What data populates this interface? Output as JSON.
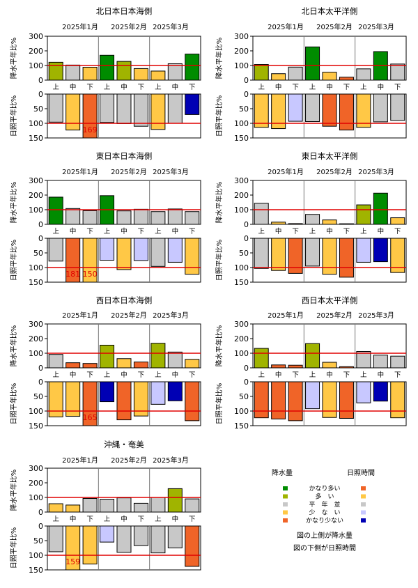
{
  "months": [
    "2025年1月",
    "2025年2月",
    "2025年3月"
  ],
  "dekads": [
    "上",
    "中",
    "下"
  ],
  "precip_axis_label": "降水平年比%",
  "sun_axis_label": "日照平年比%",
  "precip_ticks": [
    "0",
    "100",
    "200",
    "300"
  ],
  "sun_ticks": [
    "0",
    "50",
    "100",
    "150"
  ],
  "legend": {
    "precip_title": "降水量",
    "sun_title": "日照時間",
    "classes": [
      "かなり多い",
      "多　い",
      "平　年　並",
      "少　な　い",
      "かなり少ない"
    ],
    "precip_colors": [
      "#008c00",
      "#a0b400",
      "#c8c8c8",
      "#ffc846",
      "#f06428"
    ],
    "sun_colors": [
      "#f06428",
      "#ffc846",
      "#c8c8c8",
      "#c8c8ff",
      "#0000b4"
    ],
    "note_line1": "図の上側が降水量",
    "note_line2": "図の下側が日照時間"
  },
  "chart_data": [
    {
      "type": "bar",
      "title": "北日本日本海側",
      "categories": [
        "1月上",
        "1月中",
        "1月下",
        "2月上",
        "2月中",
        "2月下",
        "3月上",
        "3月中",
        "3月下"
      ],
      "precip": [
        122,
        103,
        88,
        170,
        128,
        79,
        62,
        112,
        178
      ],
      "precip_class": [
        1,
        2,
        3,
        0,
        1,
        3,
        3,
        2,
        0
      ],
      "sun": [
        96,
        123,
        169,
        97,
        101,
        110,
        121,
        100,
        70
      ],
      "sun_class": [
        2,
        1,
        0,
        2,
        2,
        2,
        1,
        2,
        4
      ],
      "sun_labels": [
        "",
        "",
        "169",
        "",
        "",
        "",
        "",
        "",
        ""
      ],
      "precip_ylim": [
        0,
        300
      ],
      "sun_ylim": [
        0,
        150
      ]
    },
    {
      "type": "bar",
      "title": "北日本太平洋側",
      "categories": [
        "1月上",
        "1月中",
        "1月下",
        "2月上",
        "2月中",
        "2月下",
        "3月上",
        "3月中",
        "3月下"
      ],
      "precip": [
        107,
        44,
        89,
        227,
        54,
        20,
        77,
        195,
        110
      ],
      "precip_class": [
        1,
        3,
        2,
        0,
        3,
        4,
        2,
        0,
        2
      ],
      "sun": [
        114,
        118,
        93,
        94,
        110,
        123,
        114,
        95,
        90
      ],
      "sun_class": [
        1,
        1,
        3,
        2,
        0,
        0,
        1,
        2,
        2
      ],
      "sun_labels": [
        "",
        "",
        "",
        "",
        "",
        "",
        "",
        "",
        ""
      ],
      "precip_ylim": [
        0,
        300
      ],
      "sun_ylim": [
        0,
        150
      ]
    },
    {
      "type": "bar",
      "title": "東日本日本海側",
      "categories": [
        "1月上",
        "1月中",
        "1月下",
        "2月上",
        "2月中",
        "2月下",
        "3月上",
        "3月中",
        "3月下"
      ],
      "precip": [
        186,
        108,
        93,
        196,
        92,
        103,
        87,
        105,
        87
      ],
      "precip_class": [
        0,
        2,
        2,
        0,
        2,
        2,
        2,
        2,
        2
      ],
      "sun": [
        78,
        181,
        150,
        75,
        107,
        76,
        96,
        82,
        123
      ],
      "sun_class": [
        2,
        0,
        1,
        3,
        1,
        3,
        2,
        3,
        1
      ],
      "sun_labels": [
        "",
        "181",
        "150",
        "",
        "",
        "",
        "",
        "",
        ""
      ],
      "precip_ylim": [
        0,
        300
      ],
      "sun_ylim": [
        0,
        150
      ]
    },
    {
      "type": "bar",
      "title": "東日本太平洋側",
      "categories": [
        "1月上",
        "1月中",
        "1月下",
        "2月上",
        "2月中",
        "2月下",
        "3月上",
        "3月中",
        "3月下"
      ],
      "precip": [
        144,
        15,
        5,
        68,
        30,
        4,
        133,
        213,
        45
      ],
      "precip_class": [
        2,
        3,
        4,
        2,
        3,
        4,
        1,
        0,
        3
      ],
      "sun": [
        103,
        110,
        120,
        95,
        123,
        133,
        82,
        80,
        117
      ],
      "sun_class": [
        2,
        1,
        0,
        2,
        1,
        0,
        3,
        4,
        1
      ],
      "sun_labels": [
        "",
        "",
        "",
        "",
        "",
        "",
        "",
        "",
        ""
      ],
      "precip_ylim": [
        0,
        300
      ],
      "sun_ylim": [
        0,
        150
      ]
    },
    {
      "type": "bar",
      "title": "西日本日本海側",
      "categories": [
        "1月上",
        "1月中",
        "1月下",
        "2月上",
        "2月中",
        "2月下",
        "3月上",
        "3月中",
        "3月下"
      ],
      "precip": [
        92,
        35,
        30,
        155,
        63,
        40,
        168,
        108,
        58
      ],
      "precip_class": [
        2,
        4,
        4,
        1,
        3,
        4,
        1,
        2,
        3
      ],
      "sun": [
        120,
        118,
        165,
        68,
        130,
        117,
        77,
        65,
        133
      ],
      "sun_class": [
        1,
        1,
        0,
        4,
        0,
        1,
        3,
        4,
        0
      ],
      "sun_labels": [
        "",
        "",
        "165",
        "",
        "",
        "",
        "",
        "",
        ""
      ],
      "precip_ylim": [
        0,
        300
      ],
      "sun_ylim": [
        0,
        150
      ]
    },
    {
      "type": "bar",
      "title": "西日本太平洋側",
      "categories": [
        "1月上",
        "1月中",
        "1月下",
        "2月上",
        "2月中",
        "2月下",
        "3月上",
        "3月中",
        "3月下"
      ],
      "precip": [
        133,
        20,
        18,
        166,
        38,
        8,
        112,
        87,
        80
      ],
      "precip_class": [
        1,
        4,
        4,
        1,
        3,
        4,
        2,
        2,
        2
      ],
      "sun": [
        123,
        127,
        133,
        92,
        122,
        125,
        72,
        66,
        123
      ],
      "sun_class": [
        0,
        0,
        0,
        3,
        1,
        0,
        3,
        4,
        1
      ],
      "sun_labels": [
        "",
        "",
        "",
        "",
        "",
        "",
        "",
        "",
        ""
      ],
      "precip_ylim": [
        0,
        300
      ],
      "sun_ylim": [
        0,
        150
      ]
    },
    {
      "type": "bar",
      "title": "沖縄・奄美",
      "categories": [
        "1月上",
        "1月中",
        "1月下",
        "2月上",
        "2月中",
        "2月下",
        "3月上",
        "3月中",
        "3月下"
      ],
      "precip": [
        57,
        48,
        93,
        88,
        97,
        60,
        100,
        160,
        90
      ],
      "precip_class": [
        3,
        3,
        2,
        2,
        2,
        2,
        2,
        1,
        2
      ],
      "sun": [
        88,
        159,
        130,
        55,
        90,
        67,
        92,
        75,
        138
      ],
      "sun_class": [
        2,
        1,
        1,
        3,
        2,
        2,
        2,
        2,
        0
      ],
      "sun_labels": [
        "",
        "159",
        "",
        "",
        "",
        "",
        "",
        "",
        ""
      ],
      "precip_ylim": [
        0,
        300
      ],
      "sun_ylim": [
        0,
        150
      ]
    }
  ]
}
